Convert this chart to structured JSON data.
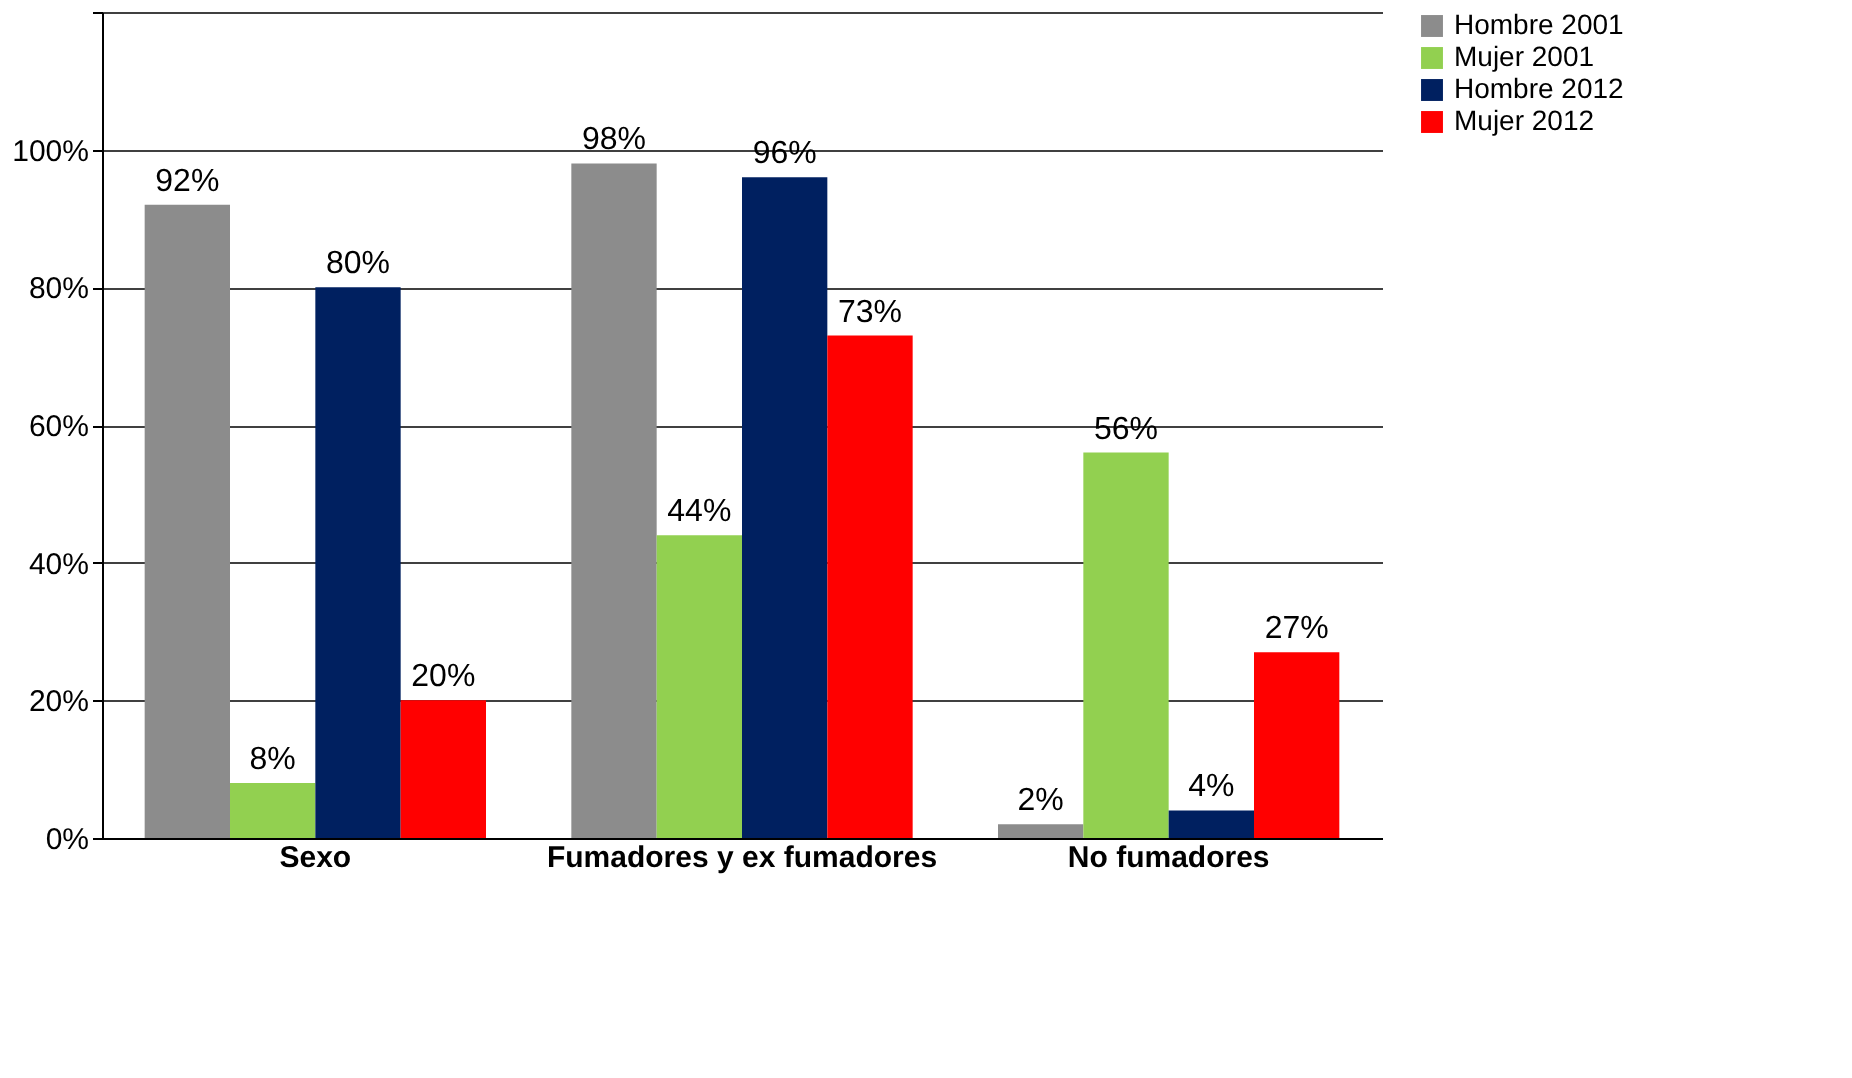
{
  "chart_data": {
    "type": "bar",
    "categories": [
      "Sexo",
      "Fumadores y ex fumadores",
      "No fumadores"
    ],
    "series": [
      {
        "name": "Hombre 2001",
        "color": "#8c8c8c",
        "values": [
          92,
          98,
          2
        ],
        "value_labels": [
          "92%",
          "98%",
          "2%"
        ]
      },
      {
        "name": "Mujer 2001",
        "color": "#92d050",
        "values": [
          8,
          44,
          56
        ],
        "value_labels": [
          "8%",
          "44%",
          "56%"
        ]
      },
      {
        "name": "Hombre 2012",
        "color": "#002060",
        "values": [
          80,
          96,
          4
        ],
        "value_labels": [
          "80%",
          "96%",
          "4%"
        ]
      },
      {
        "name": "Mujer 2012",
        "color": "#ff0000",
        "values": [
          20,
          73,
          27
        ],
        "value_labels": [
          "20%",
          "73%",
          "27%"
        ]
      }
    ],
    "ylim": [
      0,
      120
    ],
    "yticks": [
      {
        "value": 0,
        "label": "0%"
      },
      {
        "value": 20,
        "label": "20%"
      },
      {
        "value": 40,
        "label": "40%"
      },
      {
        "value": 60,
        "label": "60%"
      },
      {
        "value": 80,
        "label": "80%"
      },
      {
        "value": 100,
        "label": "100%"
      },
      {
        "value": 120,
        "label": null
      }
    ],
    "grid": "y",
    "legend": "right"
  }
}
